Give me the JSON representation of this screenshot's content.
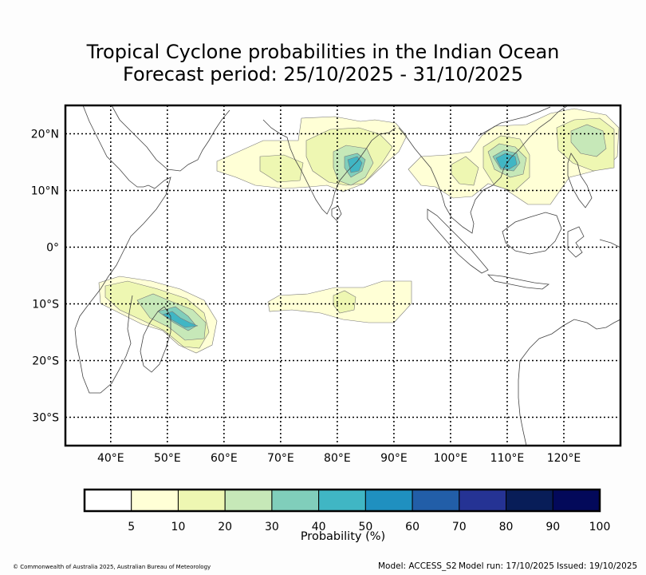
{
  "title": {
    "line1": "Tropical Cyclone probabilities in the Indian Ocean",
    "line2": "Forecast period: 25/10/2025 - 31/10/2025"
  },
  "map": {
    "lon_range": [
      32,
      130
    ],
    "lat_range": [
      -35,
      25
    ],
    "lon_ticks": [
      {
        "value": 40,
        "label": "40°E"
      },
      {
        "value": 50,
        "label": "50°E"
      },
      {
        "value": 60,
        "label": "60°E"
      },
      {
        "value": 70,
        "label": "70°E"
      },
      {
        "value": 80,
        "label": "80°E"
      },
      {
        "value": 90,
        "label": "90°E"
      },
      {
        "value": 100,
        "label": "100°E"
      },
      {
        "value": 110,
        "label": "110°E"
      },
      {
        "value": 120,
        "label": "120°E"
      }
    ],
    "lat_ticks": [
      {
        "value": 20,
        "label": "20°N"
      },
      {
        "value": 10,
        "label": "10°N"
      },
      {
        "value": 0,
        "label": "0°"
      },
      {
        "value": -10,
        "label": "10°S"
      },
      {
        "value": -20,
        "label": "20°S"
      },
      {
        "value": -30,
        "label": "30°S"
      }
    ],
    "contour_colors": [
      "#ffffd6",
      "#eef7b2",
      "#c6e8b8",
      "#80cebb",
      "#40b6c4",
      "#1f90c0",
      "#225ea8",
      "#253394",
      "#081d58",
      "#03095a"
    ],
    "coast_color": "#444444"
  },
  "colorbar": {
    "label": "Probability (%)",
    "ticks": [
      "5",
      "10",
      "20",
      "30",
      "40",
      "50",
      "60",
      "70",
      "80",
      "90",
      "100"
    ],
    "colors": [
      "#ffffff",
      "#ffffd6",
      "#eef7b2",
      "#c6e8b8",
      "#80cebb",
      "#40b6c4",
      "#1f90c0",
      "#225ea8",
      "#253394",
      "#081d58",
      "#03095a"
    ]
  },
  "footer": {
    "copyright": "© Commonwealth of Australia 2025, Australian Bureau of Meteorology",
    "model": "Model: ACCESS_S2",
    "model_run": "Model run: 17/10/2025",
    "issued": "Issued: 19/10/2025"
  }
}
